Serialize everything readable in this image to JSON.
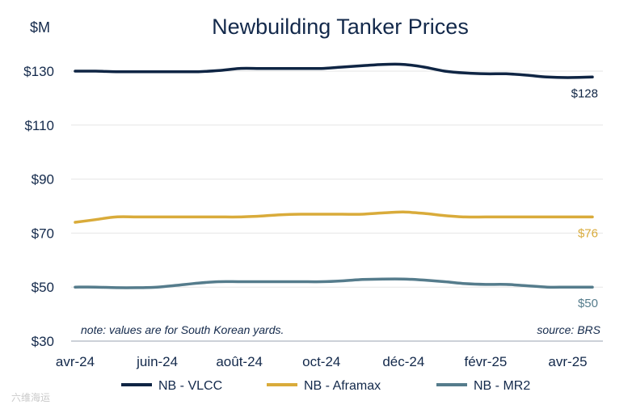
{
  "chart_data": {
    "type": "line",
    "title": "Newbuilding Tanker Prices",
    "ylabel": "$M",
    "ylim": [
      30,
      130
    ],
    "yticks": [
      30,
      50,
      70,
      90,
      110,
      130
    ],
    "ytick_labels": [
      "$30",
      "$50",
      "$70",
      "$90",
      "$110",
      "$130"
    ],
    "xlim": [
      0,
      12.6
    ],
    "xticks": [
      0,
      2,
      4,
      6,
      8,
      10,
      12
    ],
    "xtick_labels": [
      "avr-24",
      "juin-24",
      "août-24",
      "oct-24",
      "déc-24",
      "févr-25",
      "avr-25"
    ],
    "x": [
      0,
      0.5,
      1,
      1.5,
      2,
      2.5,
      3,
      3.5,
      4,
      4.5,
      5,
      5.5,
      6,
      6.5,
      7,
      7.5,
      8,
      8.5,
      9,
      9.5,
      10,
      10.5,
      11,
      11.5,
      12,
      12.6
    ],
    "series": [
      {
        "name": "NB - VLCC",
        "color": "#0f2544",
        "values": [
          130,
          130,
          129.8,
          129.8,
          129.8,
          129.8,
          129.8,
          130.2,
          131,
          131,
          131,
          131,
          131,
          131.5,
          132,
          132.5,
          132.5,
          131.5,
          130,
          129.3,
          129,
          129,
          128.5,
          127.8,
          127.6,
          127.8
        ],
        "end_label": "$128"
      },
      {
        "name": "NB - Aframax",
        "color": "#d9ab3a",
        "values": [
          74,
          75,
          76,
          76,
          76,
          76,
          76,
          76,
          76,
          76.3,
          76.8,
          77,
          77,
          77,
          77,
          77.5,
          77.8,
          77.3,
          76.5,
          76,
          76,
          76,
          76,
          76,
          76,
          76
        ],
        "end_label": "$76"
      },
      {
        "name": "NB - MR2",
        "color": "#557c8c",
        "values": [
          50,
          50,
          49.8,
          49.8,
          50,
          50.7,
          51.5,
          52,
          52,
          52,
          52,
          52,
          52,
          52.3,
          52.8,
          53,
          53,
          52.6,
          52,
          51.3,
          51,
          51,
          50.5,
          50,
          50,
          50
        ],
        "end_label": "$50"
      }
    ],
    "gridlines": true,
    "legend_position": "bottom",
    "annotations": {
      "note": "note: values are for South Korean yards.",
      "source": "source: BRS"
    }
  },
  "watermark": "六维海运"
}
